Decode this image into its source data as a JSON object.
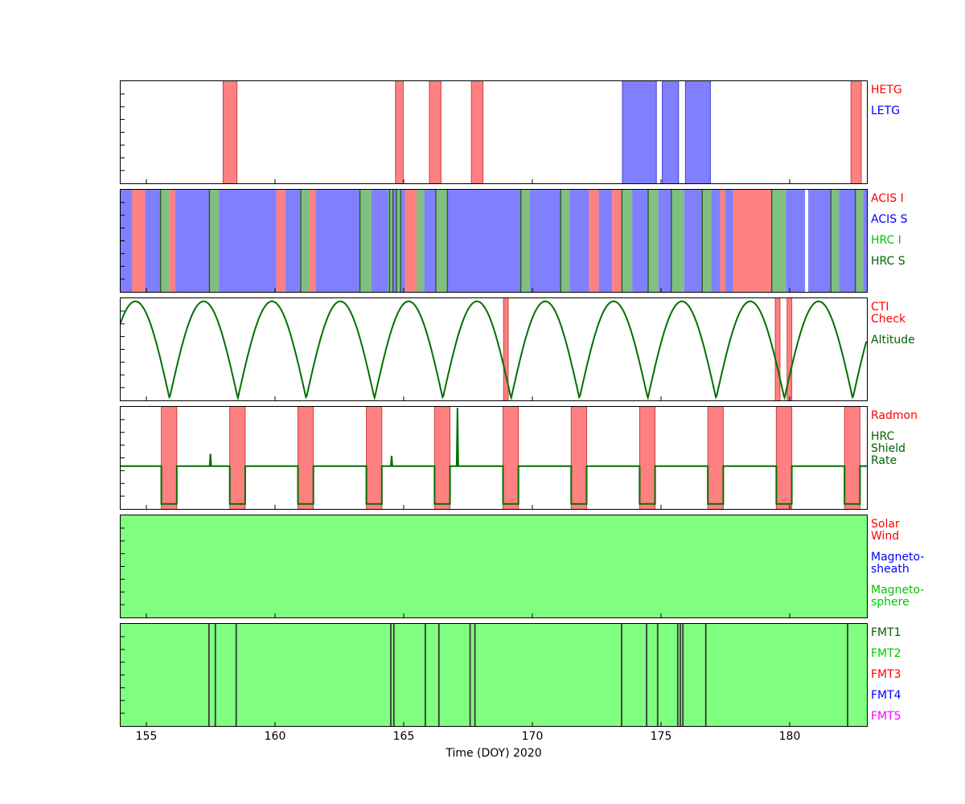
{
  "figure": {
    "xlabel": "Time (DOY) 2020",
    "x_range": [
      154,
      183
    ],
    "x_ticks": [
      "155",
      "160",
      "165",
      "170",
      "175",
      "180"
    ],
    "x_tick_values": [
      155,
      160,
      165,
      170,
      175,
      180
    ],
    "background": "#ffffff"
  },
  "colors": {
    "red_band": "#ff8080",
    "red_band_edge": "#cc4040",
    "blue_band": "#8080ff",
    "blue_band_edge": "#4040cc",
    "green_band": "#80bf80",
    "bright_green_fill": "#80ff80",
    "white": "#ffffff",
    "curve_green": "#007000",
    "fmt_line": "#383838",
    "panel2_divider": "#2a5a2a",
    "axis": "#000000",
    "label_red": "#ff0000",
    "label_blue": "#0000ff",
    "label_green_bright": "#00c800",
    "label_green_dark": "#006400",
    "label_magenta": "#ff00ff"
  },
  "panels": [
    {
      "labels": [
        {
          "lines": [
            "HETG"
          ],
          "color": "#ff0000"
        },
        {
          "lines": [
            "LETG"
          ],
          "color": "#0000ff"
        }
      ]
    },
    {
      "labels": [
        {
          "lines": [
            "ACIS I"
          ],
          "color": "#ff0000"
        },
        {
          "lines": [
            "ACIS S"
          ],
          "color": "#0000ff"
        },
        {
          "lines": [
            "HRC I"
          ],
          "color": "#00c800"
        },
        {
          "lines": [
            "HRC S"
          ],
          "color": "#006400"
        }
      ]
    },
    {
      "labels": [
        {
          "lines": [
            "CTI",
            "Check"
          ],
          "color": "#ff0000"
        },
        {
          "lines": [
            "Altitude"
          ],
          "color": "#006400"
        }
      ]
    },
    {
      "labels": [
        {
          "lines": [
            "Radmon"
          ],
          "color": "#ff0000"
        },
        {
          "lines": [
            "HRC",
            "Shield",
            "Rate"
          ],
          "color": "#006400"
        }
      ]
    },
    {
      "labels": [
        {
          "lines": [
            "Solar",
            "Wind"
          ],
          "color": "#ff0000"
        },
        {
          "lines": [
            "Magneto-",
            "sheath"
          ],
          "color": "#0000ff"
        },
        {
          "lines": [
            "Magneto-",
            "sphere"
          ],
          "color": "#00c800"
        }
      ]
    },
    {
      "labels": [
        {
          "lines": [
            "FMT1"
          ],
          "color": "#006400"
        },
        {
          "lines": [
            "FMT2"
          ],
          "color": "#00c800"
        },
        {
          "lines": [
            "FMT3"
          ],
          "color": "#ff0000"
        },
        {
          "lines": [
            "FMT4"
          ],
          "color": "#0000ff"
        },
        {
          "lines": [
            "FMT5"
          ],
          "color": "#ff00ff"
        }
      ]
    }
  ],
  "chart_data": [
    {
      "name": "gratings",
      "type": "interval-bands",
      "x_unit": "DOY 2020",
      "series": [
        {
          "name": "HETG",
          "color": "red",
          "intervals": [
            [
              157.98,
              158.52
            ],
            [
              164.68,
              164.98
            ],
            [
              166.0,
              166.45
            ],
            [
              167.63,
              168.08
            ],
            [
              182.38,
              182.78
            ]
          ]
        },
        {
          "name": "LETG",
          "color": "blue",
          "intervals": [
            [
              173.5,
              174.82
            ],
            [
              175.05,
              175.68
            ],
            [
              175.95,
              176.92
            ]
          ]
        }
      ]
    },
    {
      "name": "detectors",
      "type": "segment-bands",
      "legend": [
        "ACIS I (red)",
        "ACIS S (blue)",
        "HRC I / HRC S (green)"
      ],
      "segments": [
        [
          154.0,
          154.45,
          "blue"
        ],
        [
          154.45,
          154.95,
          "red"
        ],
        [
          154.95,
          155.55,
          "blue"
        ],
        [
          155.55,
          155.9,
          "green"
        ],
        [
          155.9,
          156.12,
          "red"
        ],
        [
          156.12,
          157.45,
          "blue"
        ],
        [
          157.45,
          157.82,
          "green"
        ],
        [
          157.82,
          160.05,
          "blue"
        ],
        [
          160.05,
          160.4,
          "red"
        ],
        [
          160.4,
          161.0,
          "blue"
        ],
        [
          161.0,
          161.35,
          "green"
        ],
        [
          161.35,
          161.58,
          "red"
        ],
        [
          161.58,
          163.3,
          "blue"
        ],
        [
          163.3,
          163.75,
          "green"
        ],
        [
          163.75,
          164.4,
          "blue"
        ],
        [
          164.4,
          164.55,
          "green"
        ],
        [
          164.55,
          164.72,
          "blue"
        ],
        [
          164.72,
          164.88,
          "green"
        ],
        [
          164.88,
          165.05,
          "blue"
        ],
        [
          165.05,
          165.5,
          "red"
        ],
        [
          165.5,
          165.8,
          "green"
        ],
        [
          165.8,
          166.25,
          "blue"
        ],
        [
          166.25,
          166.7,
          "green"
        ],
        [
          166.7,
          169.55,
          "blue"
        ],
        [
          169.55,
          169.9,
          "green"
        ],
        [
          169.9,
          171.1,
          "blue"
        ],
        [
          171.1,
          171.45,
          "green"
        ],
        [
          171.45,
          172.2,
          "blue"
        ],
        [
          172.2,
          172.58,
          "red"
        ],
        [
          172.58,
          173.1,
          "blue"
        ],
        [
          173.1,
          173.48,
          "red"
        ],
        [
          173.48,
          173.88,
          "green"
        ],
        [
          173.88,
          174.5,
          "blue"
        ],
        [
          174.5,
          174.9,
          "green"
        ],
        [
          174.9,
          175.4,
          "blue"
        ],
        [
          175.4,
          175.9,
          "green"
        ],
        [
          175.9,
          176.6,
          "blue"
        ],
        [
          176.6,
          176.95,
          "green"
        ],
        [
          176.95,
          177.3,
          "blue"
        ],
        [
          177.3,
          177.5,
          "red"
        ],
        [
          177.5,
          177.8,
          "blue"
        ],
        [
          177.8,
          179.3,
          "red"
        ],
        [
          179.3,
          179.85,
          "green"
        ],
        [
          179.85,
          180.6,
          "blue"
        ],
        [
          180.6,
          180.72,
          "white"
        ],
        [
          180.72,
          181.6,
          "blue"
        ],
        [
          181.6,
          181.92,
          "green"
        ],
        [
          181.92,
          182.55,
          "blue"
        ],
        [
          182.55,
          182.85,
          "green"
        ],
        [
          182.85,
          183.0,
          "blue"
        ]
      ],
      "dividers": [
        155.55,
        157.45,
        161.0,
        163.3,
        164.45,
        164.58,
        164.72,
        164.88,
        166.25,
        166.7,
        169.55,
        171.1,
        173.48,
        174.5,
        175.4,
        176.6,
        179.3,
        181.6,
        182.55
      ]
    },
    {
      "name": "cti-altitude",
      "type": "line+bands",
      "cti_check_intervals": [
        [
          168.88,
          169.06
        ],
        [
          179.44,
          179.62
        ],
        [
          179.9,
          180.08
        ]
      ],
      "altitude": {
        "perigee_times": [
          155.9,
          158.555,
          161.21,
          163.865,
          166.52,
          169.175,
          171.83,
          174.485,
          177.14,
          179.795,
          182.45
        ],
        "period_days": 2.655,
        "min_frac": 0.02,
        "max_frac": 0.97
      }
    },
    {
      "name": "radmon-shield",
      "type": "line+bands",
      "radmon_disable_intervals": [
        [
          155.58,
          156.18
        ],
        [
          158.24,
          158.84
        ],
        [
          160.89,
          161.49
        ],
        [
          163.55,
          164.15
        ],
        [
          166.2,
          166.8
        ],
        [
          168.86,
          169.46
        ],
        [
          171.51,
          172.11
        ],
        [
          174.17,
          174.77
        ],
        [
          176.82,
          177.42
        ],
        [
          179.48,
          180.08
        ],
        [
          182.13,
          182.73
        ]
      ],
      "shield_rate": {
        "baseline_frac": 0.42,
        "low_frac": 0.05,
        "spikes": [
          {
            "t": 157.49,
            "peak_frac": 0.54
          },
          {
            "t": 164.53,
            "peak_frac": 0.52
          },
          {
            "t": 167.09,
            "peak_frac": 0.99
          }
        ]
      }
    },
    {
      "name": "geo-region",
      "type": "fill",
      "region": "Magneto-sphere",
      "interval": [
        154,
        183
      ]
    },
    {
      "name": "fmt",
      "type": "fill+lines",
      "base_format": "FMT2",
      "transition_times": [
        157.43,
        157.68,
        158.49,
        164.5,
        164.62,
        165.84,
        166.37,
        167.58,
        167.77,
        173.47,
        174.44,
        174.87,
        175.65,
        175.75,
        175.85,
        176.74,
        182.25
      ]
    }
  ]
}
